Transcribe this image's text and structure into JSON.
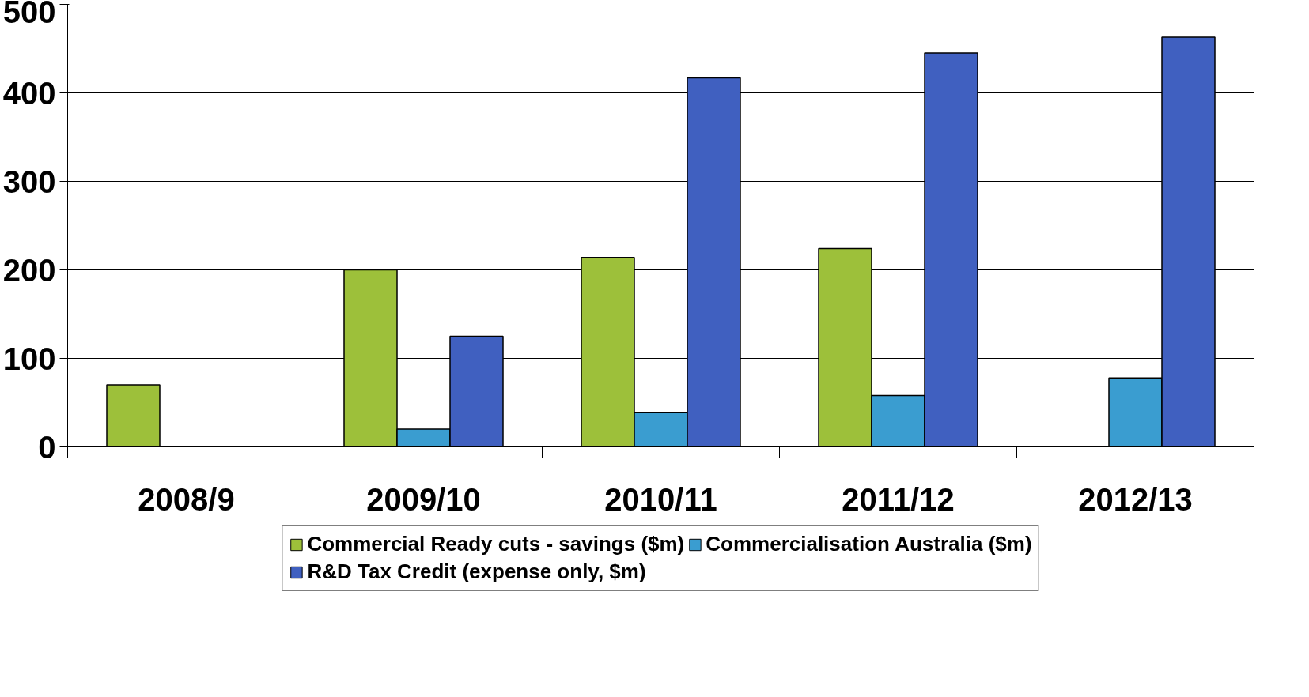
{
  "chart_data": {
    "type": "bar",
    "categories": [
      "2008/9",
      "2009/10",
      "2010/11",
      "2011/12",
      "2012/13"
    ],
    "series": [
      {
        "name": "Commercial Ready cuts - savings ($m)",
        "color": "#9dc03a",
        "values": [
          70,
          200,
          214,
          224,
          null
        ]
      },
      {
        "name": "Commercialisation Australia ($m)",
        "color": "#3a9dd0",
        "values": [
          null,
          20,
          39,
          58,
          78
        ]
      },
      {
        "name": "R&D Tax Credit (expense only, $m)",
        "color": "#4060c0",
        "values": [
          null,
          125,
          417,
          445,
          463
        ]
      }
    ],
    "ylim": [
      0,
      500
    ],
    "yticks": [
      0,
      100,
      200,
      300,
      400,
      500
    ],
    "grid": "y",
    "legend": "bottom"
  }
}
